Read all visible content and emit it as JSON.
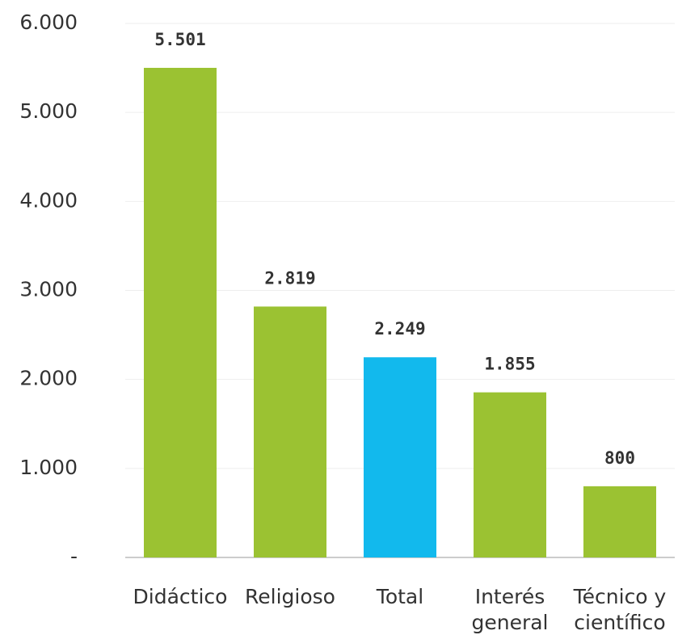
{
  "chart_data": {
    "type": "bar",
    "categories": [
      "Didáctico",
      "Religioso",
      "Total",
      "Interés general",
      "Técnico y científico"
    ],
    "values": [
      5501,
      2819,
      2249,
      1855,
      800
    ],
    "value_labels": [
      "5.501",
      "2.819",
      "2.249",
      "1.855",
      "800"
    ],
    "colors": [
      "#9bc232",
      "#9bc232",
      "#12b9ed",
      "#9bc232",
      "#9bc232"
    ],
    "ylim": [
      0,
      6000
    ],
    "yticks": [
      {
        "value": 0,
        "label": "-"
      },
      {
        "value": 1000,
        "label": "1.000"
      },
      {
        "value": 2000,
        "label": "2.000"
      },
      {
        "value": 3000,
        "label": "3.000"
      },
      {
        "value": 4000,
        "label": "4.000"
      },
      {
        "value": 5000,
        "label": "5.000"
      },
      {
        "value": 6000,
        "label": "6.000"
      }
    ],
    "grid": true
  }
}
